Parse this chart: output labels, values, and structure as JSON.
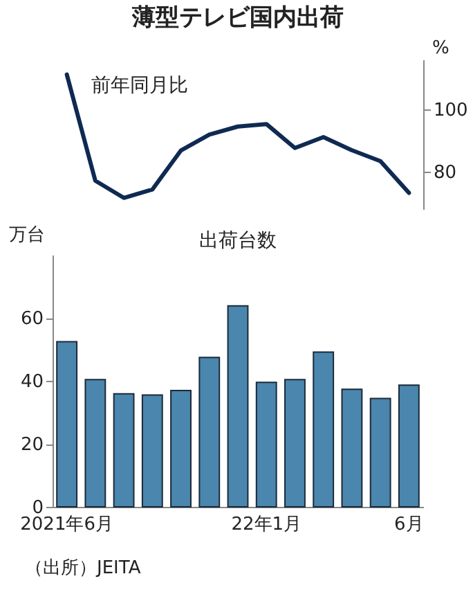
{
  "chart_data": [
    {
      "type": "line",
      "title": "薄型テレビ国内出荷",
      "ylabel": "%",
      "categories": [
        null,
        null,
        null,
        null,
        null,
        null,
        null,
        null,
        null,
        null,
        null,
        null,
        null
      ],
      "series": [
        {
          "name": "前年同月比",
          "color": "#0f2a52",
          "values": [
            111.2,
            77.1,
            71.6,
            74.3,
            86.8,
            91.9,
            94.5,
            95.3,
            87.6,
            91.1,
            86.9,
            83.4,
            73.2
          ]
        }
      ],
      "ylim": [
        68,
        116
      ],
      "yticks": [
        80,
        100
      ],
      "tick_labels": "y",
      "legend": false,
      "grid": false,
      "marker": "none",
      "line_style": "solid"
    },
    {
      "type": "bar",
      "title": "出荷台数",
      "ylabel": "万台",
      "categories": [
        "2021年6月",
        null,
        null,
        null,
        null,
        null,
        null,
        "22年1月",
        null,
        null,
        null,
        null,
        "6月"
      ],
      "values": [
        52.4,
        40.4,
        35.9,
        35.5,
        36.9,
        47.4,
        63.8,
        39.5,
        40.4,
        49.1,
        37.3,
        34.4,
        38.6
      ],
      "color": "#4a86ad",
      "ylim": [
        0,
        80
      ],
      "yticks": [
        0,
        20,
        40,
        60
      ],
      "grid": false,
      "annotations": [
        "（出所）JEITA"
      ]
    }
  ]
}
